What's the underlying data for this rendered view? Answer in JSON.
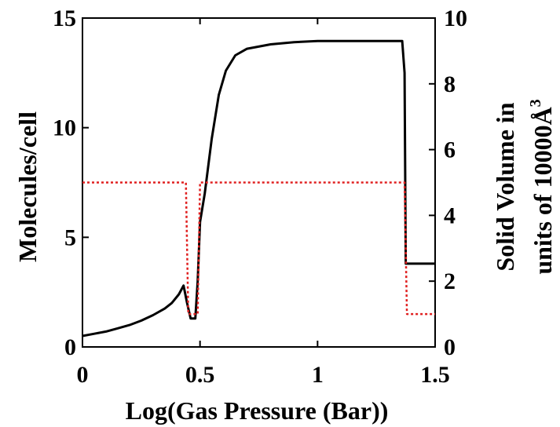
{
  "chart_data": {
    "type": "line",
    "xlabel": "Log(Gas Pressure (Bar))",
    "ylabel_left": "Molecules/cell",
    "ylabel_right_line1": "Solid Volume in",
    "ylabel_right_line2": "units of 10000Å",
    "ylabel_right_sup": "3",
    "xlim": [
      0,
      1.5
    ],
    "ylim_left": [
      0,
      15
    ],
    "ylim_right": [
      0,
      10
    ],
    "x_ticks": [
      {
        "value": 0,
        "label": "0"
      },
      {
        "value": 0.5,
        "label": "0.5"
      },
      {
        "value": 1,
        "label": "1"
      },
      {
        "value": 1.5,
        "label": "1.5"
      }
    ],
    "y_left_ticks": [
      {
        "value": 0,
        "label": "0"
      },
      {
        "value": 5,
        "label": "5"
      },
      {
        "value": 10,
        "label": "10"
      },
      {
        "value": 15,
        "label": "15"
      }
    ],
    "y_right_ticks": [
      {
        "value": 0,
        "label": "0"
      },
      {
        "value": 2,
        "label": "2"
      },
      {
        "value": 4,
        "label": "4"
      },
      {
        "value": 6,
        "label": "6"
      },
      {
        "value": 8,
        "label": "8"
      },
      {
        "value": 10,
        "label": "10"
      }
    ],
    "grid": false,
    "series": [
      {
        "axis": "left",
        "color": "#000000",
        "style": "solid",
        "points": [
          [
            0,
            0.5
          ],
          [
            0.05,
            0.6
          ],
          [
            0.1,
            0.7
          ],
          [
            0.15,
            0.85
          ],
          [
            0.2,
            1.0
          ],
          [
            0.25,
            1.2
          ],
          [
            0.3,
            1.45
          ],
          [
            0.35,
            1.75
          ],
          [
            0.38,
            2.0
          ],
          [
            0.41,
            2.4
          ],
          [
            0.43,
            2.8
          ],
          [
            0.445,
            2.0
          ],
          [
            0.46,
            1.3
          ],
          [
            0.48,
            1.3
          ],
          [
            0.49,
            3.0
          ],
          [
            0.5,
            5.7
          ],
          [
            0.52,
            7.0
          ],
          [
            0.55,
            9.5
          ],
          [
            0.58,
            11.5
          ],
          [
            0.61,
            12.6
          ],
          [
            0.65,
            13.3
          ],
          [
            0.7,
            13.6
          ],
          [
            0.8,
            13.8
          ],
          [
            0.9,
            13.9
          ],
          [
            1.0,
            13.95
          ],
          [
            1.2,
            13.95
          ],
          [
            1.36,
            13.95
          ],
          [
            1.37,
            12.5
          ],
          [
            1.375,
            3.8
          ],
          [
            1.4,
            3.8
          ],
          [
            1.45,
            3.8
          ],
          [
            1.5,
            3.8
          ]
        ]
      },
      {
        "axis": "right",
        "color": "#e02020",
        "style": "dotted",
        "points": [
          [
            0,
            5.0
          ],
          [
            0.44,
            5.0
          ],
          [
            0.45,
            1.0
          ],
          [
            0.49,
            1.0
          ],
          [
            0.5,
            5.0
          ],
          [
            1.37,
            5.0
          ],
          [
            1.38,
            1.0
          ],
          [
            1.5,
            1.0
          ]
        ]
      }
    ]
  }
}
